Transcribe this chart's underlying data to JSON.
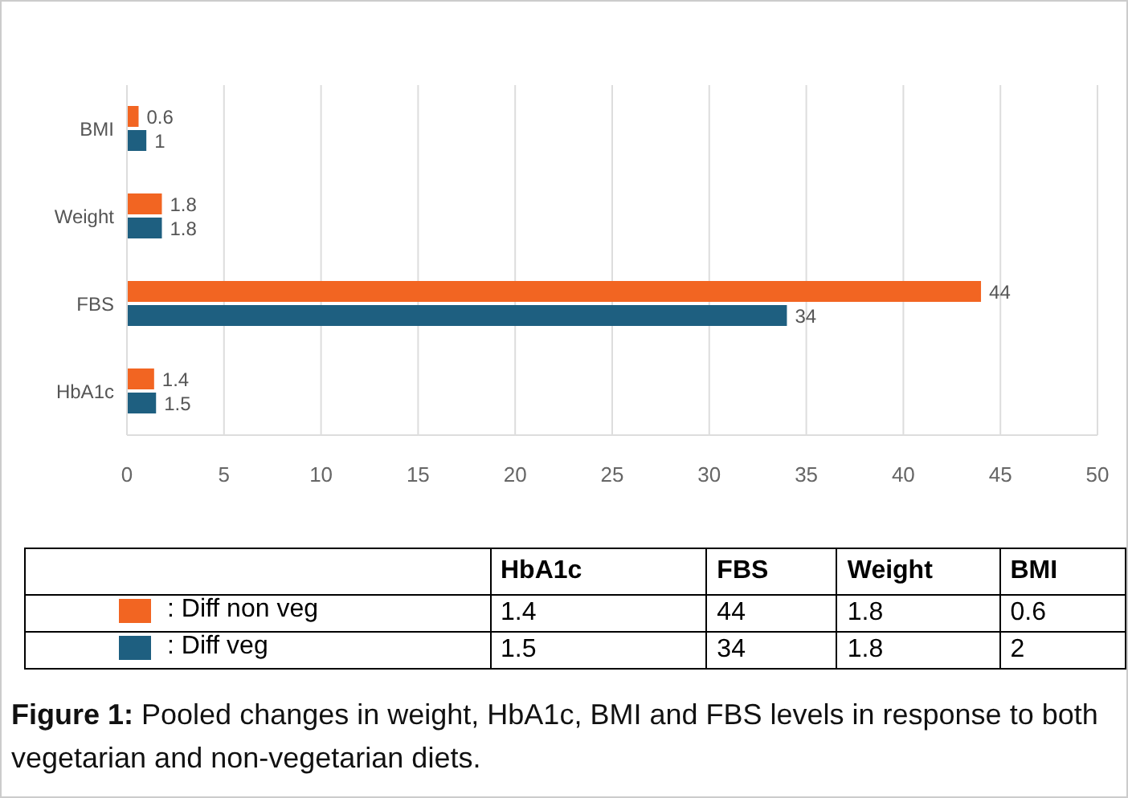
{
  "chart_data": [
    {
      "type": "bar",
      "orientation": "horizontal",
      "categories": [
        "BMI",
        "Weight",
        "FBS",
        "HbA1c"
      ],
      "series": [
        {
          "color": "#f26522",
          "values": [
            0.6,
            1.8,
            44,
            1.4
          ],
          "value_labels": [
            "0.6",
            "1.8",
            "44",
            "1.4"
          ]
        },
        {
          "color": "#1e5f80",
          "values": [
            1,
            1.8,
            34,
            1.5
          ],
          "value_labels": [
            "1",
            "1.8",
            "34",
            "1.5"
          ]
        }
      ],
      "xlim": [
        0,
        50
      ],
      "xticks": [
        0,
        5,
        10,
        15,
        20,
        25,
        30,
        35,
        40,
        45,
        50
      ],
      "grid": "x"
    },
    {
      "type": "other",
      "categories": [
        "HbA1c",
        "FBS",
        "Weight",
        "BMI"
      ],
      "series": [
        {
          "name": ": Diff non veg",
          "color": "#f26522",
          "values": [
            1.4,
            44,
            1.8,
            0.6
          ]
        },
        {
          "name": ": Diff veg",
          "color": "#1e5f80",
          "values": [
            1.5,
            34,
            1.8,
            2
          ]
        }
      ],
      "legend": "left",
      "data_labels": true,
      "annotations": [
        "Figure 1: Pooled changes in weight, HbA1c, BMI and FBS levels in response to both vegetarian and non-vegetarian diets."
      ]
    }
  ]
}
